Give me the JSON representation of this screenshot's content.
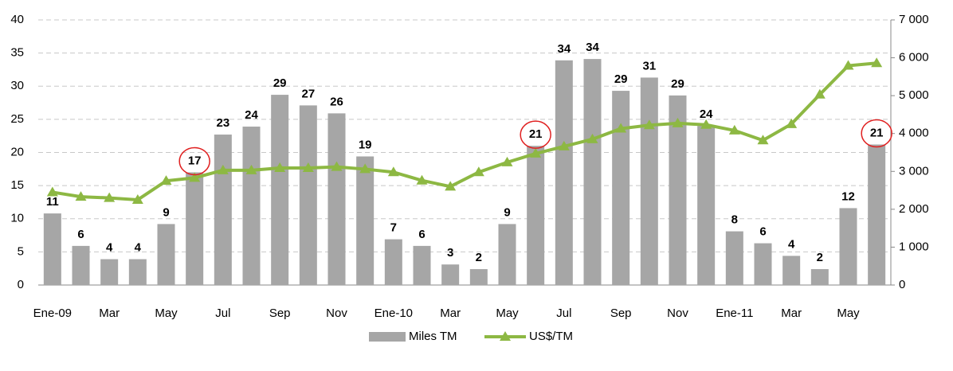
{
  "chart_data": {
    "type": "bar-line",
    "categories": [
      "Ene-09",
      null,
      "Mar",
      null,
      "May",
      null,
      "Jul",
      null,
      "Sep",
      null,
      "Nov",
      null,
      "Ene-10",
      null,
      "Mar",
      null,
      "May",
      null,
      "Jul",
      null,
      "Sep",
      null,
      "Nov",
      null,
      "Ene-11",
      null,
      "Mar",
      null,
      "May",
      null
    ],
    "series": [
      {
        "name": "Miles TM",
        "color": "#a6a6a6",
        "type": "bar",
        "values": [
          10.8,
          5.9,
          3.9,
          3.9,
          9.2,
          17,
          22.7,
          23.9,
          28.7,
          27.1,
          25.9,
          19.4,
          6.9,
          5.9,
          3.1,
          2.4,
          9.2,
          21,
          33.9,
          34.1,
          29.3,
          31.3,
          28.6,
          24,
          8.1,
          6.3,
          4.4,
          2.4,
          11.6,
          21.2
        ],
        "value_labels": [
          "11",
          "6",
          "4",
          "4",
          "9",
          "17",
          "23",
          "24",
          "29",
          "27",
          "26",
          "19",
          "7",
          "6",
          "3",
          "2",
          "9",
          "21",
          "34",
          "34",
          "29",
          "31",
          "29",
          "24",
          "8",
          "6",
          "4",
          "2",
          "12",
          "21"
        ]
      },
      {
        "name": "US$/TM",
        "color": "#8db843",
        "type": "line",
        "axis": "y2",
        "values": [
          2450,
          2330,
          2300,
          2250,
          2750,
          2830,
          3030,
          3030,
          3090,
          3090,
          3120,
          3060,
          2980,
          2760,
          2600,
          2980,
          3240,
          3470,
          3660,
          3850,
          4130,
          4220,
          4270,
          4230,
          4080,
          3820,
          4250,
          5030,
          5790,
          5860
        ]
      }
    ],
    "circled_labels": [
      5,
      17,
      29
    ],
    "ylim": [
      0,
      40
    ],
    "yticks": [
      0,
      5,
      10,
      15,
      20,
      25,
      30,
      35,
      40
    ],
    "y2lim": [
      0,
      7000
    ],
    "y2ticks": [
      0,
      {
        "value": 1000,
        "label": "1 000"
      },
      {
        "value": 2000,
        "label": "2 000"
      },
      {
        "value": 3000,
        "label": "3 000"
      },
      {
        "value": 4000,
        "label": "4 000"
      },
      {
        "value": 5000,
        "label": "5 000"
      },
      {
        "value": 6000,
        "label": "6 000"
      },
      {
        "value": 7000,
        "label": "7 000"
      }
    ],
    "grid": true,
    "legend": "bottom"
  }
}
